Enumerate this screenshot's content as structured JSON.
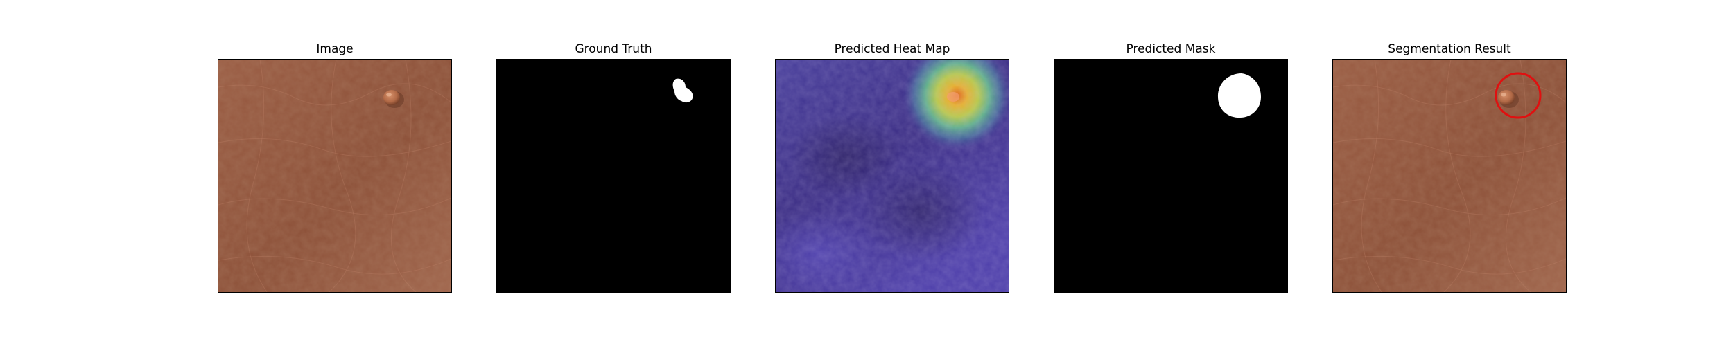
{
  "figure": {
    "panels": [
      {
        "title": "Image",
        "content": "skin-lesion-photo"
      },
      {
        "title": "Ground Truth",
        "content": "ground-truth-mask"
      },
      {
        "title": "Predicted Heat Map",
        "content": "heat-map-overlay"
      },
      {
        "title": "Predicted Mask",
        "content": "predicted-mask"
      },
      {
        "title": "Segmentation Result",
        "content": "photo-with-circle"
      }
    ],
    "colors": {
      "skin": "#9a5c43",
      "mask_background": "#000000",
      "mask_foreground": "#ffffff",
      "heat_low": "#3b2f8a",
      "heat_high": "#e07a1e",
      "highlight_circle": "#e01010"
    }
  }
}
